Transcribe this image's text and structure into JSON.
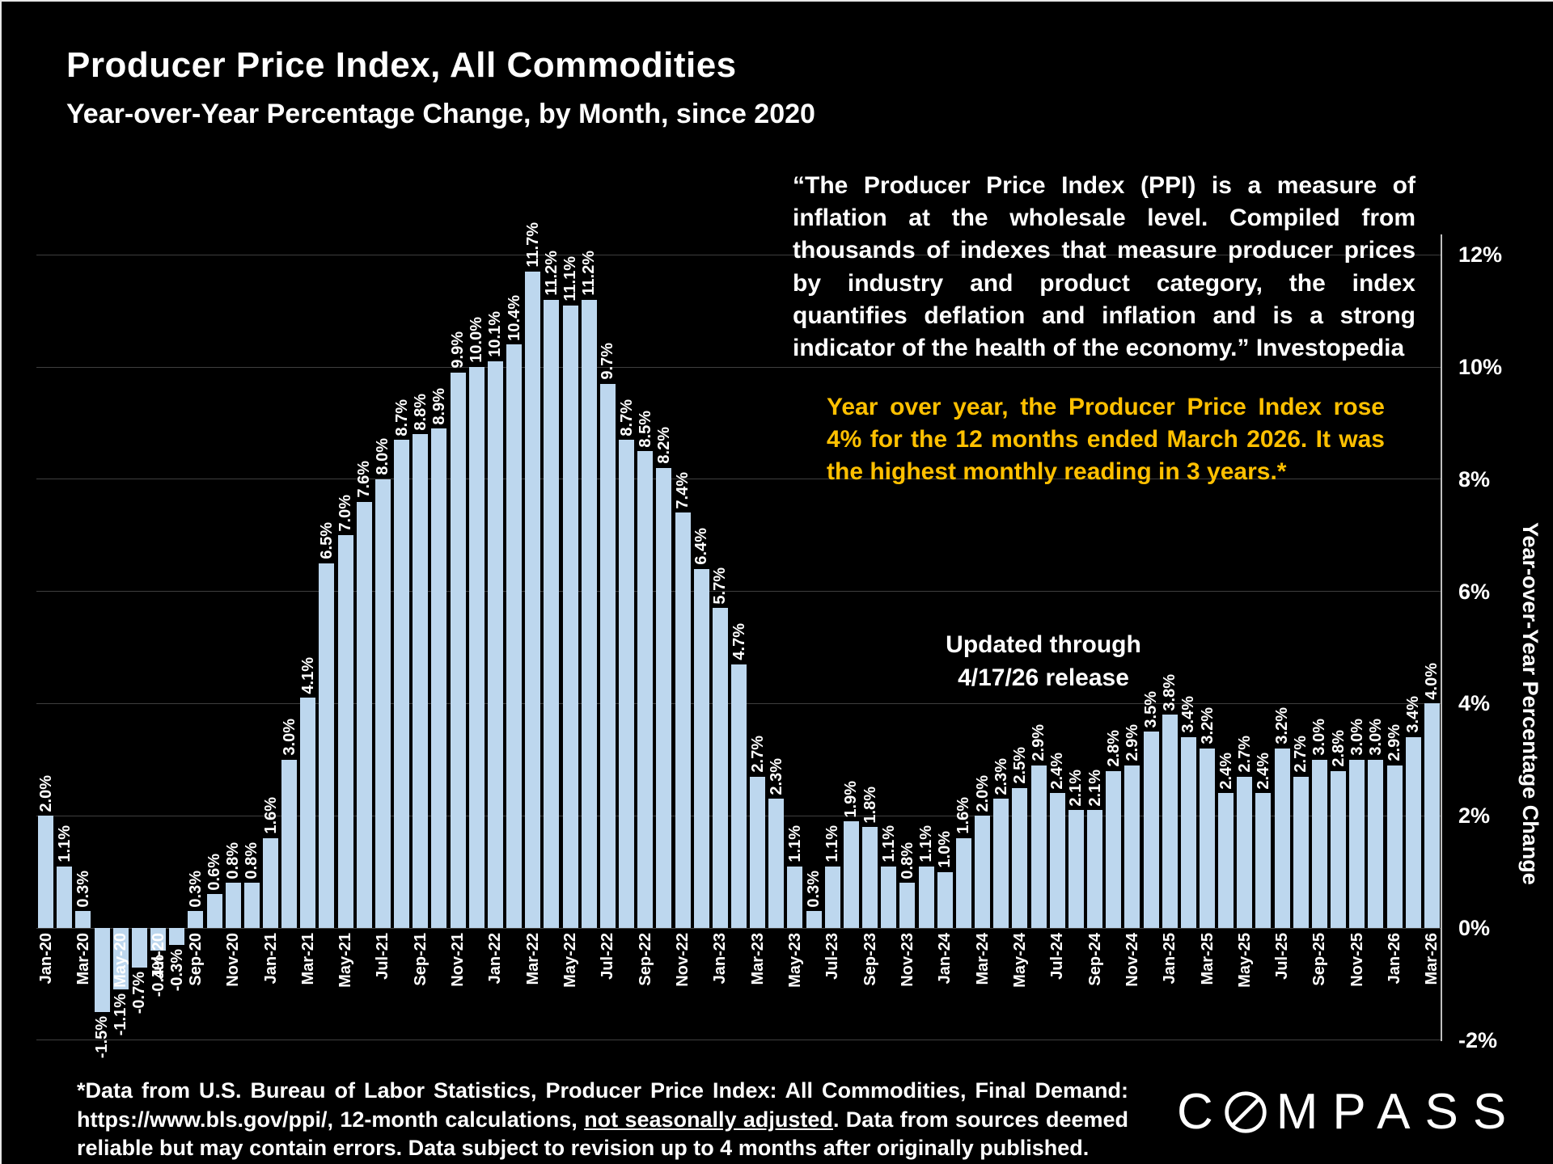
{
  "header": {
    "title": "Producer Price Index, All Commodities",
    "subtitle": "Year-over-Year Percentage Change, by Month, since 2020"
  },
  "panels": {
    "quote": "“The Producer Price Index (PPI) is a measure of inflation at the wholesale level. Compiled from thousands of indexes that measure producer prices by industry and product category,  the index quantifies deflation and inflation and is a strong indicator of the health of the economy.” Investopedia",
    "highlight": "Year over year, the Producer Price Index rose 4% for the 12 months ended March 2026. It was the highest monthly reading in 3 years.*",
    "updated_line1": "Updated through",
    "updated_line2": "4/17/26 release"
  },
  "footnote": {
    "part1": "*Data from U.S. Bureau of Labor Statistics, Producer Price Index: All Commodities, Final Demand: https://www.bls.gov/ppi/, 12-month calculations, ",
    "underlined": "not seasonally adjusted",
    "part2": ". Data from sources deemed reliable but may contain errors. Data subject to revision up to 4 months after originally published."
  },
  "logo": {
    "pre": "C",
    "post": "MPASS"
  },
  "colors": {
    "background": "#000000",
    "bar": "#BDD7EE",
    "text": "#FFFFFF",
    "accent_gold": "#FFC000",
    "gridline": "#3F3F3F",
    "axis_line": "#BFBFBF"
  },
  "chart_data": {
    "type": "bar",
    "title": "Producer Price Index, All Commodities — Year-over-Year Percentage Change, by Month, since 2020",
    "xlabel": "",
    "ylabel": "Year-over-Year Percentage Change",
    "ylim": [
      -2,
      12
    ],
    "grid": true,
    "legend": false,
    "bar_color": "#BDD7EE",
    "x_tick_every": 2,
    "y_ticks": [
      {
        "value": 12,
        "label": "12%"
      },
      {
        "value": 10,
        "label": "10%"
      },
      {
        "value": 8,
        "label": "8%"
      },
      {
        "value": 6,
        "label": "6%"
      },
      {
        "value": 4,
        "label": "4%"
      },
      {
        "value": 2,
        "label": "2%"
      },
      {
        "value": 0,
        "label": "0%"
      },
      {
        "value": -2,
        "label": "-2%"
      }
    ],
    "categories": [
      "Jan-20",
      "Feb-20",
      "Mar-20",
      "Apr-20",
      "May-20",
      "Jun-20",
      "Jul-20",
      "Aug-20",
      "Sep-20",
      "Oct-20",
      "Nov-20",
      "Dec-20",
      "Jan-21",
      "Feb-21",
      "Mar-21",
      "Apr-21",
      "May-21",
      "Jun-21",
      "Jul-21",
      "Aug-21",
      "Sep-21",
      "Oct-21",
      "Nov-21",
      "Dec-21",
      "Jan-22",
      "Feb-22",
      "Mar-22",
      "Apr-22",
      "May-22",
      "Jun-22",
      "Jul-22",
      "Aug-22",
      "Sep-22",
      "Oct-22",
      "Nov-22",
      "Dec-22",
      "Jan-23",
      "Feb-23",
      "Mar-23",
      "Apr-23",
      "May-23",
      "Jun-23",
      "Jul-23",
      "Aug-23",
      "Sep-23",
      "Oct-23",
      "Nov-23",
      "Dec-23",
      "Jan-24",
      "Feb-24",
      "Mar-24",
      "Apr-24",
      "May-24",
      "Jun-24",
      "Jul-24",
      "Aug-24",
      "Sep-24",
      "Oct-24",
      "Nov-24",
      "Dec-24",
      "Jan-25",
      "Feb-25",
      "Mar-25",
      "Apr-25",
      "May-25",
      "Jun-25",
      "Jul-25",
      "Aug-25",
      "Sep-25",
      "Oct-25",
      "Nov-25",
      "Dec-25",
      "Jan-26",
      "Feb-26",
      "Mar-26"
    ],
    "values": [
      2.0,
      1.1,
      0.3,
      -1.5,
      -1.1,
      -0.7,
      -0.4,
      -0.3,
      0.3,
      0.6,
      0.8,
      0.8,
      1.6,
      3.0,
      4.1,
      6.5,
      7.0,
      7.6,
      8.0,
      8.7,
      8.8,
      8.9,
      9.9,
      10.0,
      10.1,
      10.4,
      11.7,
      11.2,
      11.1,
      11.2,
      9.7,
      8.7,
      8.5,
      8.2,
      7.4,
      6.4,
      5.7,
      4.7,
      2.7,
      2.3,
      1.1,
      0.3,
      1.1,
      1.9,
      1.8,
      1.1,
      0.8,
      1.1,
      1.0,
      1.6,
      2.0,
      2.3,
      2.5,
      2.9,
      2.4,
      2.1,
      2.1,
      2.8,
      2.9,
      3.5,
      3.8,
      3.4,
      3.2,
      2.4,
      2.7,
      2.4,
      3.2,
      2.7,
      3.0,
      2.8,
      3.0,
      3.0,
      2.9,
      3.4,
      4.0
    ]
  }
}
